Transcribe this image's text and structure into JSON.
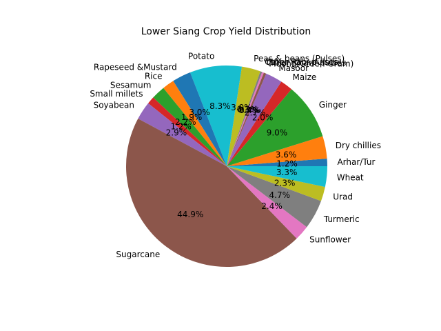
{
  "chart_data": {
    "type": "pie",
    "title": "Lower Siang Crop Yield Distribution",
    "start_angle_deg": 0,
    "direction": "counterclockwise",
    "slices": [
      {
        "label": "Arhar/Tur",
        "value": 1.2,
        "pct_label": "1.2%",
        "color": "#1f77b4"
      },
      {
        "label": "Dry chillies",
        "value": 3.6,
        "pct_label": "3.6%",
        "color": "#ff7f0e"
      },
      {
        "label": "Ginger",
        "value": 9.0,
        "pct_label": "9.0%",
        "color": "#2ca02c"
      },
      {
        "label": "Maize",
        "value": 2.0,
        "pct_label": "2.0%",
        "color": "#d62728"
      },
      {
        "label": "Masoor",
        "value": 2.7,
        "pct_label": "2.7%",
        "color": "#9467bd"
      },
      {
        "label": "Moong(Green Gram)",
        "value": 0.4,
        "pct_label": "0.4%",
        "color": "#8c564b"
      },
      {
        "label": "Other Kharif pulses",
        "value": 0.3,
        "pct_label": "0.3%",
        "color": "#e377c2"
      },
      {
        "label": "Other Rabi pulses",
        "value": 0.3,
        "pct_label": "0.3%",
        "color": "#7f7f7f"
      },
      {
        "label": "Peas & beans (Pulses)",
        "value": 3.0,
        "pct_label": "3.0%",
        "color": "#bcbd22"
      },
      {
        "label": "Potato",
        "value": 8.3,
        "pct_label": "8.3%",
        "color": "#17becf"
      },
      {
        "label": "Rapeseed &Mustard",
        "value": 3.0,
        "pct_label": "3.0%",
        "color": "#1f77b4"
      },
      {
        "label": "Rice",
        "value": 1.9,
        "pct_label": "1.9%",
        "color": "#ff7f0e"
      },
      {
        "label": "Sesamum",
        "value": 2.2,
        "pct_label": "2.2%",
        "color": "#2ca02c"
      },
      {
        "label": "Small millets",
        "value": 1.2,
        "pct_label": "1.2%",
        "color": "#d62728"
      },
      {
        "label": "Soyabean",
        "value": 2.9,
        "pct_label": "2.9%",
        "color": "#9467bd"
      },
      {
        "label": "Sugarcane",
        "value": 44.9,
        "pct_label": "44.9%",
        "color": "#8c564b"
      },
      {
        "label": "Sunflower",
        "value": 2.4,
        "pct_label": "2.4%",
        "color": "#e377c2"
      },
      {
        "label": "Turmeric",
        "value": 4.7,
        "pct_label": "4.7%",
        "color": "#7f7f7f"
      },
      {
        "label": "Urad",
        "value": 2.3,
        "pct_label": "2.3%",
        "color": "#bcbd22"
      },
      {
        "label": "Wheat",
        "value": 3.3,
        "pct_label": "3.3%",
        "color": "#17becf"
      }
    ]
  }
}
